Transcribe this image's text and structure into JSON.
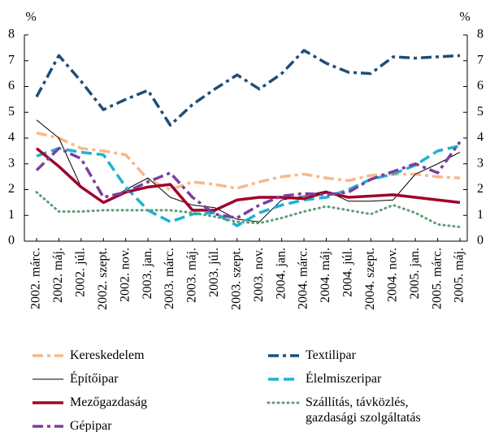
{
  "chart_data": {
    "type": "line",
    "y_label": "%",
    "y2_label": "%",
    "categories": [
      "2002. márc.",
      "2002. máj.",
      "2002. júl.",
      "2002. szept.",
      "2002. nov.",
      "2003. jan.",
      "2003. márc.",
      "2003. máj.",
      "2003. júl.",
      "2003. szept.",
      "2003. nov.",
      "2004. jan.",
      "2004. márc.",
      "2004. máj.",
      "2004. júl.",
      "2004. szept.",
      "2004. nov.",
      "2005. jan.",
      "2005. márc.",
      "2005. máj."
    ],
    "ylim": [
      0,
      8
    ],
    "yticks": [
      0,
      1,
      2,
      3,
      4,
      5,
      6,
      7,
      8
    ],
    "y2lim": [
      0,
      8
    ],
    "y2ticks": [
      0,
      1,
      2,
      3,
      4,
      5,
      6,
      7,
      8
    ],
    "series": [
      {
        "name": "Kereskedelem",
        "color": "#f7b88a",
        "style": "dashdot",
        "values": [
          4.2,
          4.0,
          3.6,
          3.5,
          3.35,
          2.4,
          2.0,
          2.3,
          2.2,
          2.05,
          2.3,
          2.5,
          2.6,
          2.45,
          2.35,
          2.55,
          2.6,
          2.6,
          2.5,
          2.45
        ]
      },
      {
        "name": "Textilipar",
        "color": "#1f4e79",
        "style": "dashdot",
        "values": [
          5.6,
          7.2,
          6.2,
          5.1,
          5.5,
          5.85,
          4.5,
          5.3,
          5.9,
          6.45,
          5.9,
          6.5,
          7.4,
          6.9,
          6.55,
          6.5,
          7.15,
          7.1,
          7.15,
          7.2
        ]
      },
      {
        "name": "Építőipar",
        "color": "#000000",
        "style": "thin",
        "values": [
          4.7,
          4.0,
          2.1,
          1.5,
          2.0,
          2.45,
          1.7,
          1.4,
          1.3,
          0.85,
          0.75,
          1.6,
          1.75,
          1.95,
          1.55,
          1.55,
          1.6,
          2.6,
          3.0,
          3.45
        ]
      },
      {
        "name": "Élelmiszeripar",
        "color": "#1fb2d0",
        "style": "dashed",
        "values": [
          3.3,
          3.6,
          3.45,
          3.35,
          2.1,
          1.2,
          0.75,
          1.05,
          1.1,
          0.6,
          1.1,
          1.4,
          1.6,
          1.7,
          2.0,
          2.4,
          2.6,
          2.95,
          3.5,
          3.7
        ]
      },
      {
        "name": "Mezőgazdaság",
        "color": "#a0002a",
        "style": "solid",
        "values": [
          3.6,
          2.9,
          2.1,
          1.5,
          1.9,
          2.1,
          2.2,
          1.2,
          1.2,
          1.6,
          1.7,
          1.7,
          1.65,
          1.9,
          1.7,
          1.75,
          1.8,
          1.7,
          1.6,
          1.5
        ]
      },
      {
        "name": "Szállítás, távközlés, gazdasági szolgáltatás",
        "color": "#5c9e74",
        "style": "dotted",
        "values": [
          1.9,
          1.15,
          1.15,
          1.2,
          1.2,
          1.2,
          1.2,
          1.1,
          0.95,
          0.75,
          0.7,
          0.9,
          1.15,
          1.35,
          1.2,
          1.05,
          1.4,
          1.1,
          0.65,
          0.55
        ]
      },
      {
        "name": "Gépipar",
        "color": "#7a3fa0",
        "style": "dashdot",
        "values": [
          2.75,
          3.6,
          3.2,
          1.7,
          1.9,
          2.3,
          2.65,
          1.7,
          1.05,
          0.9,
          1.4,
          1.75,
          1.85,
          1.8,
          1.9,
          2.4,
          2.7,
          3.0,
          2.65,
          3.85
        ]
      }
    ]
  }
}
